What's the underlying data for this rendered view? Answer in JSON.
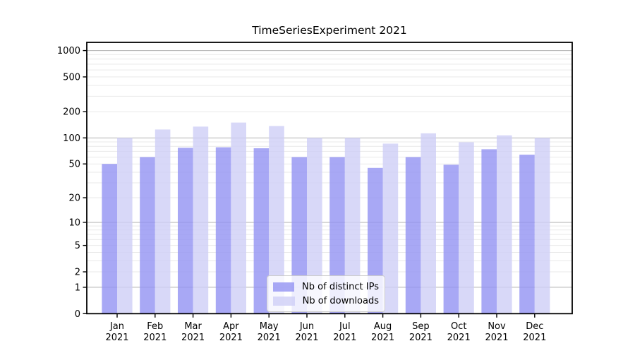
{
  "chart_data": {
    "type": "bar",
    "title": "TimeSeriesExperiment 2021",
    "x": {
      "months": [
        "Jan",
        "Feb",
        "Mar",
        "Apr",
        "May",
        "Jun",
        "Jul",
        "Aug",
        "Sep",
        "Oct",
        "Nov",
        "Dec"
      ],
      "year": "2021"
    },
    "series": [
      {
        "name": "Nb of distinct IPs",
        "color": "#9292f2",
        "values": [
          50,
          60,
          77,
          78,
          76,
          60,
          60,
          45,
          60,
          49,
          74,
          64
        ]
      },
      {
        "name": "Nb of downloads",
        "color": "#cecef6",
        "values": [
          100,
          125,
          135,
          150,
          137,
          100,
          100,
          86,
          113,
          89,
          107,
          100
        ]
      }
    ],
    "bar_opacity": 0.8,
    "y_axis": {
      "scale": "log10(value+1)",
      "ticks": [
        0,
        1,
        2,
        5,
        10,
        20,
        50,
        100,
        200,
        500,
        1000
      ],
      "range": [
        0,
        1240
      ],
      "minor_gridlines": [
        2,
        3,
        4,
        5,
        6,
        7,
        8,
        9,
        20,
        30,
        40,
        50,
        60,
        70,
        80,
        90,
        200,
        300,
        400,
        500,
        600,
        700,
        800,
        900
      ],
      "major_gridlines": [
        1,
        10,
        100,
        1000
      ]
    },
    "legend": {
      "position": "lower center"
    },
    "colors": {
      "minor_grid": "#e9e9e9",
      "major_grid": "#b0b0b0",
      "axis": "#000000",
      "background": "#ffffff"
    }
  }
}
